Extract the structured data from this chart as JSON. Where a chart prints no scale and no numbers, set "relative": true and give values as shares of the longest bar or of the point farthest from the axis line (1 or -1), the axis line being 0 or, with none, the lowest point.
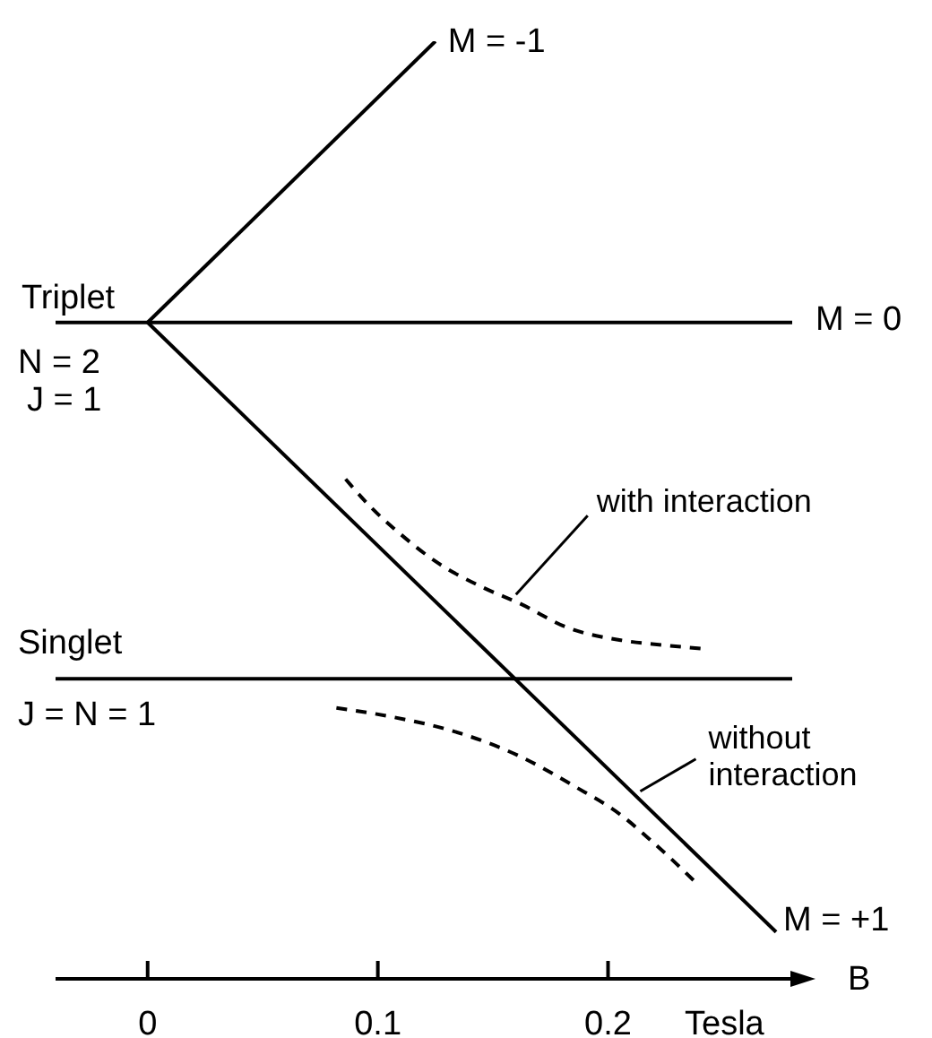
{
  "chart_data": {
    "type": "line",
    "xlabel": "B",
    "relative": true,
    "xlim": [
      -0.04,
      0.28
    ],
    "xticks": [
      0,
      0.1,
      0.2
    ],
    "marker": "none",
    "line_style": "solid",
    "series": [
      {
        "name": "M = -1",
        "color": "#000000",
        "x": [
          0,
          0.125
        ],
        "values": [
          0.7,
          1
        ]
      },
      {
        "name": "M = 0",
        "color": "#000000",
        "x": [
          -0.04,
          0.28
        ],
        "values": [
          0.7,
          0.7
        ]
      },
      {
        "name": "M = +1",
        "color": "#000000",
        "x": [
          0,
          0.273
        ],
        "values": [
          0.7,
          0.05
        ]
      },
      {
        "color": "#000000",
        "x": [
          -0.04,
          0.28
        ],
        "values": [
          0.32,
          0.32
        ]
      },
      {
        "color": "#000000",
        "line_style": "dashed",
        "x": [
          0.086,
          0.097,
          0.11,
          0.124,
          0.146,
          0.162,
          0.182,
          0.206,
          0.224,
          0.241
        ],
        "values": [
          0.533,
          0.503,
          0.474,
          0.447,
          0.417,
          0.4,
          0.375,
          0.361,
          0.356,
          0.352
        ]
      },
      {
        "color": "#000000",
        "line_style": "dashed",
        "x": [
          0.082,
          0.107,
          0.133,
          0.162,
          0.185,
          0.206,
          0.218,
          0.23,
          0.238
        ],
        "values": [
          0.289,
          0.279,
          0.264,
          0.237,
          0.206,
          0.174,
          0.149,
          0.122,
          0.103
        ]
      }
    ],
    "annotations": [
      {
        "text": "Triplet",
        "x": -0.04,
        "y": 0.7
      },
      {
        "text": "N = 2",
        "x": -0.04,
        "y": 0.7
      },
      {
        "text": "J = 1",
        "x": -0.04,
        "y": 0.7
      },
      {
        "text": "Singlet",
        "x": -0.04,
        "y": 0.32
      },
      {
        "text": "J = N = 1",
        "x": -0.04,
        "y": 0.32
      },
      {
        "text": "with interaction",
        "x": 0.16,
        "y": 0.41
      },
      {
        "text": "without interaction",
        "x": 0.214,
        "y": 0.2
      },
      "Tesla"
    ]
  }
}
